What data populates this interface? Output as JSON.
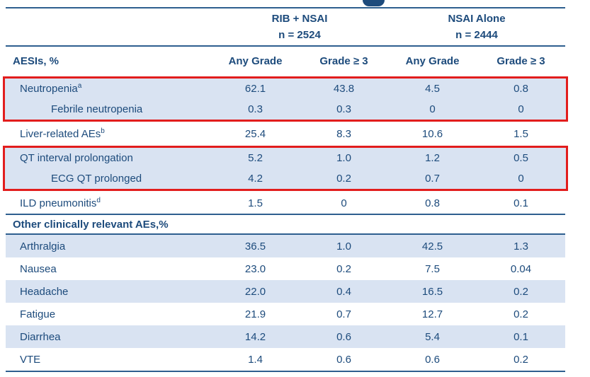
{
  "slide": {
    "cutoff_title_fragment": "partial descender of cropped slide title"
  },
  "colors": {
    "text_navy": "#1d4b7c",
    "rule_blue": "#2e5f8f",
    "row_highlight_blue": "#d9e3f2",
    "red_highlight_box": "#e21d1d",
    "background": "#ffffff"
  },
  "table": {
    "groups": [
      {
        "name": "RIB + NSAI",
        "n": "n = 2524"
      },
      {
        "name": "NSAI Alone",
        "n": "n = 2444"
      }
    ],
    "header_label": "AESIs, %",
    "columns": [
      "Any Grade",
      "Grade ≥ 3",
      "Any Grade",
      "Grade ≥ 3"
    ],
    "aesi_rows": [
      {
        "label": "Neutropenia",
        "sup": "a",
        "values": [
          "62.1",
          "43.8",
          "4.5",
          "0.8"
        ]
      },
      {
        "label": "Febrile neutropenia",
        "sup": "",
        "values": [
          "0.3",
          "0.3",
          "0",
          "0"
        ]
      },
      {
        "label": "Liver-related AEs",
        "sup": "b",
        "values": [
          "25.4",
          "8.3",
          "10.6",
          "1.5"
        ]
      },
      {
        "label": "QT interval prolongation",
        "sup": "",
        "values": [
          "5.2",
          "1.0",
          "1.2",
          "0.5"
        ]
      },
      {
        "label": "ECG QT prolonged",
        "sup": "",
        "values": [
          "4.2",
          "0.2",
          "0.7",
          "0"
        ]
      },
      {
        "label": "ILD pneumonitis",
        "sup": "d",
        "values": [
          "1.5",
          "0",
          "0.8",
          "0.1"
        ]
      }
    ],
    "section_header": "Other clinically relevant AEs,%",
    "other_rows": [
      {
        "label": "Arthralgia",
        "values": [
          "36.5",
          "1.0",
          "42.5",
          "1.3"
        ]
      },
      {
        "label": "Nausea",
        "values": [
          "23.0",
          "0.2",
          "7.5",
          "0.04"
        ]
      },
      {
        "label": "Headache",
        "values": [
          "22.0",
          "0.4",
          "16.5",
          "0.2"
        ]
      },
      {
        "label": "Fatigue",
        "values": [
          "21.9",
          "0.7",
          "12.7",
          "0.2"
        ]
      },
      {
        "label": "Diarrhea",
        "values": [
          "14.2",
          "0.6",
          "5.4",
          "0.1"
        ]
      },
      {
        "label": "VTE",
        "values": [
          "1.4",
          "0.6",
          "0.6",
          "0.2"
        ]
      }
    ]
  }
}
